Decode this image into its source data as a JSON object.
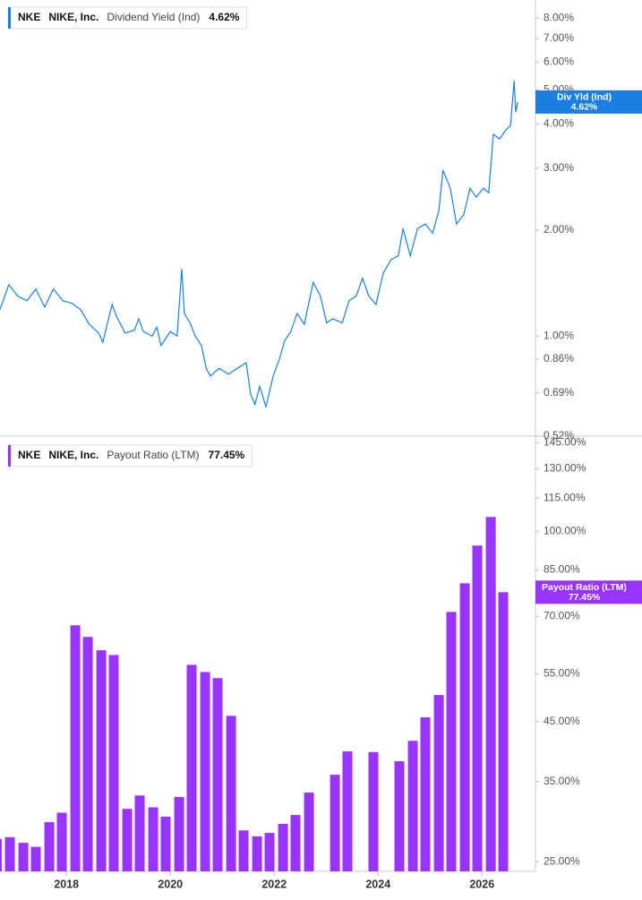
{
  "chart_data": [
    {
      "type": "line",
      "ticker": "NKE",
      "company": "NIKE, Inc.",
      "badge_label": "Div Yld (Ind)",
      "log_scale": true,
      "xlim": [
        2016.72,
        2027.03
      ],
      "ylim": [
        0.52,
        9
      ],
      "yticks": [
        {
          "value": 8,
          "label": "8.00%"
        },
        {
          "value": 7,
          "label": "7.00%"
        },
        {
          "value": 6,
          "label": "6.00%"
        },
        {
          "value": 5,
          "label": "5.00%"
        },
        {
          "value": 4,
          "label": "4.00%"
        },
        {
          "value": 3,
          "label": "3.00%"
        },
        {
          "value": 2,
          "label": "2.00%"
        },
        {
          "value": 1,
          "label": "1.00%"
        },
        {
          "value": 0.86,
          "label": "0.86%"
        },
        {
          "value": 0.69,
          "label": "0.69%"
        },
        {
          "value": 0.52,
          "label": "0.52%"
        }
      ],
      "series": [
        {
          "name": "Dividend Yield (Ind)",
          "color": "#1a7fe0",
          "current_value_label": "4.62%",
          "x": [
            2016.72,
            2016.89,
            2017.06,
            2017.24,
            2017.41,
            2017.58,
            2017.75,
            2017.93,
            2018.1,
            2018.27,
            2018.44,
            2018.62,
            2018.7,
            2018.79,
            2018.88,
            2018.96,
            2019.13,
            2019.31,
            2019.39,
            2019.48,
            2019.65,
            2019.74,
            2019.82,
            2020.0,
            2020.13,
            2020.22,
            2020.27,
            2020.38,
            2020.48,
            2020.6,
            2020.69,
            2020.77,
            2020.94,
            2021.12,
            2021.29,
            2021.46,
            2021.55,
            2021.63,
            2021.72,
            2021.84,
            2021.98,
            2022.1,
            2022.2,
            2022.32,
            2022.44,
            2022.58,
            2022.75,
            2022.89,
            2023.01,
            2023.13,
            2023.31,
            2023.44,
            2023.58,
            2023.7,
            2023.82,
            2023.96,
            2024.1,
            2024.25,
            2024.39,
            2024.48,
            2024.62,
            2024.76,
            2024.91,
            2025.05,
            2025.17,
            2025.25,
            2025.39,
            2025.51,
            2025.65,
            2025.77,
            2025.89,
            2026.03,
            2026.13,
            2026.22,
            2026.34,
            2026.46,
            2026.55,
            2026.62,
            2026.65,
            2026.69
          ],
          "values": [
            1.19,
            1.4,
            1.3,
            1.26,
            1.36,
            1.21,
            1.36,
            1.26,
            1.24,
            1.19,
            1.08,
            1.02,
            0.96,
            1.09,
            1.23,
            1.14,
            1.02,
            1.04,
            1.12,
            1.03,
            1.0,
            1.06,
            0.94,
            1.03,
            1.0,
            1.55,
            1.16,
            1.09,
            1.0,
            0.94,
            0.81,
            0.77,
            0.81,
            0.78,
            0.81,
            0.84,
            0.68,
            0.64,
            0.72,
            0.63,
            0.77,
            0.86,
            0.97,
            1.03,
            1.16,
            1.08,
            1.42,
            1.3,
            1.09,
            1.12,
            1.09,
            1.26,
            1.3,
            1.46,
            1.3,
            1.23,
            1.51,
            1.65,
            1.69,
            2.02,
            1.69,
            2.02,
            2.08,
            1.96,
            2.27,
            2.96,
            2.63,
            2.08,
            2.21,
            2.63,
            2.48,
            2.63,
            2.55,
            3.74,
            3.63,
            3.85,
            3.96,
            5.31,
            4.33,
            4.62
          ]
        }
      ]
    },
    {
      "type": "bar",
      "ticker": "NKE",
      "company": "NIKE, Inc.",
      "badge_label": "Payout Ratio (LTM)",
      "log_scale": true,
      "xlim": [
        2016.72,
        2027.03
      ],
      "ylim": [
        24,
        148
      ],
      "xticks": [
        2018,
        2020,
        2022,
        2024,
        2026
      ],
      "yticks": [
        {
          "value": 145,
          "label": "145.00%"
        },
        {
          "value": 130,
          "label": "130.00%"
        },
        {
          "value": 115,
          "label": "115.00%"
        },
        {
          "value": 100,
          "label": "100.00%"
        },
        {
          "value": 85,
          "label": "85.00%"
        },
        {
          "value": 70,
          "label": "70.00%"
        },
        {
          "value": 55,
          "label": "55.00%"
        },
        {
          "value": 45,
          "label": "45.00%"
        },
        {
          "value": 35,
          "label": "35.00%"
        },
        {
          "value": 25,
          "label": "25.00%"
        }
      ],
      "series": [
        {
          "name": "Payout Ratio (LTM)",
          "color": "#9933ff",
          "current_value_label": "77.45%",
          "x": [
            2016.66,
            2016.91,
            2017.17,
            2017.41,
            2017.67,
            2017.91,
            2018.17,
            2018.41,
            2018.67,
            2018.91,
            2019.17,
            2019.41,
            2019.67,
            2019.91,
            2020.17,
            2020.41,
            2020.67,
            2020.91,
            2021.17,
            2021.41,
            2021.67,
            2021.91,
            2022.17,
            2022.41,
            2022.67,
            2023.17,
            2023.41,
            2023.91,
            2024.41,
            2024.67,
            2024.91,
            2025.17,
            2025.41,
            2025.67,
            2025.91,
            2026.17,
            2026.41
          ],
          "values": [
            27.5,
            27.7,
            27.05,
            26.6,
            29.5,
            30.7,
            67.4,
            64.2,
            60.7,
            59.5,
            31.2,
            33.0,
            31.4,
            30.2,
            32.8,
            57.1,
            55.4,
            54.0,
            46.1,
            28.5,
            27.8,
            28.2,
            29.3,
            30.4,
            33.4,
            36.0,
            39.7,
            39.6,
            38.1,
            41.5,
            45.8,
            50.3,
            71.3,
            80.4,
            94.2,
            106.2,
            77.45
          ]
        }
      ]
    }
  ]
}
